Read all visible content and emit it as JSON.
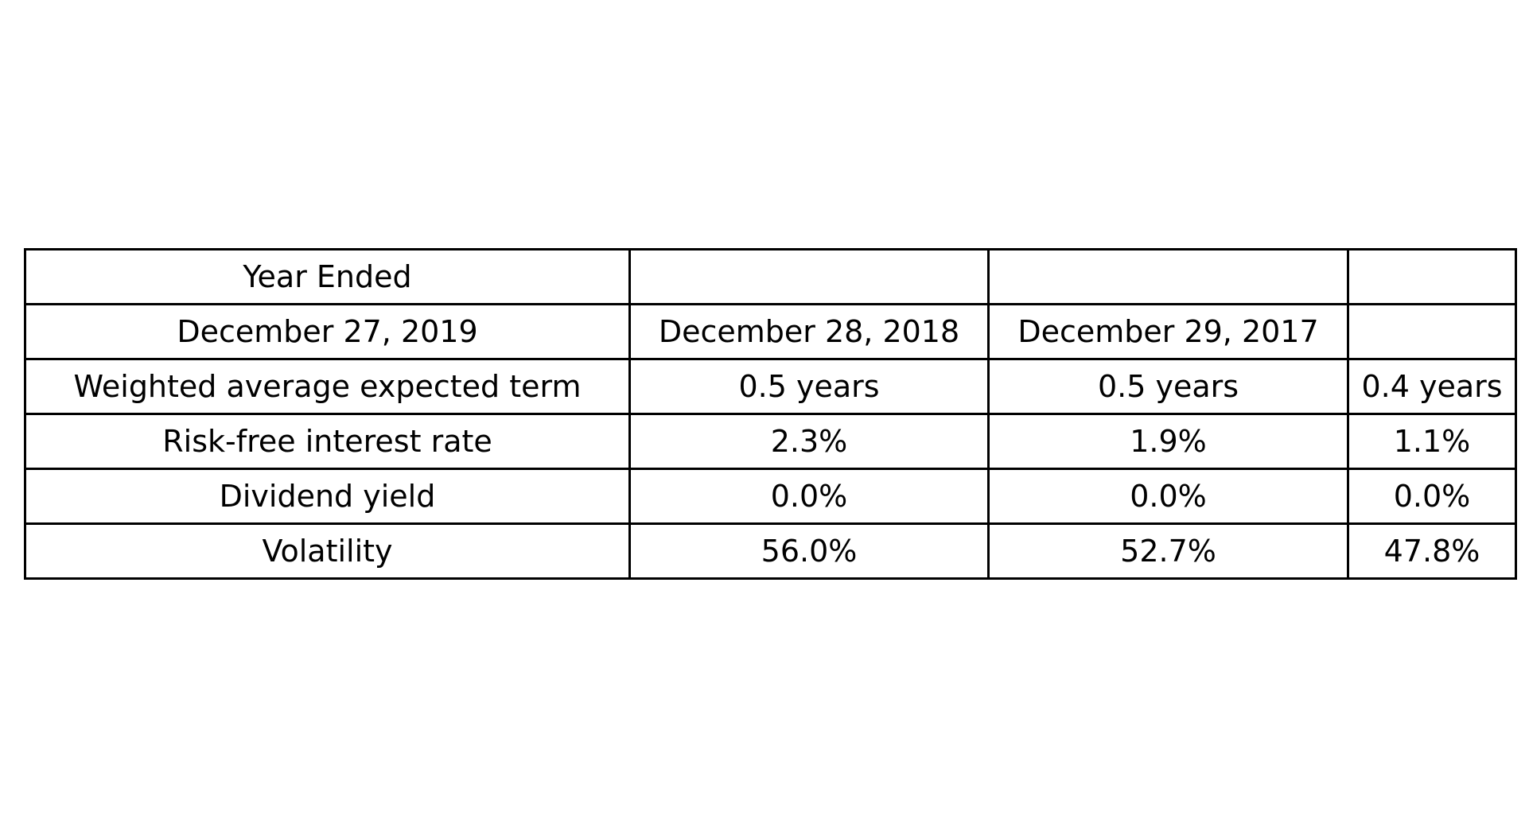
{
  "chart_data": {
    "type": "table",
    "rows": [
      [
        "Year Ended",
        "",
        "",
        ""
      ],
      [
        "December 27, 2019",
        "December 28, 2018",
        "December 29, 2017",
        ""
      ],
      [
        "Weighted average expected term",
        "0.5 years",
        "0.5 years",
        "0.4 years"
      ],
      [
        "Risk-free interest rate",
        "2.3%",
        "1.9%",
        "1.1%"
      ],
      [
        "Dividend yield",
        "0.0%",
        "0.0%",
        "0.0%"
      ],
      [
        "Volatility",
        "56.0%",
        "52.7%",
        "47.8%"
      ]
    ]
  }
}
